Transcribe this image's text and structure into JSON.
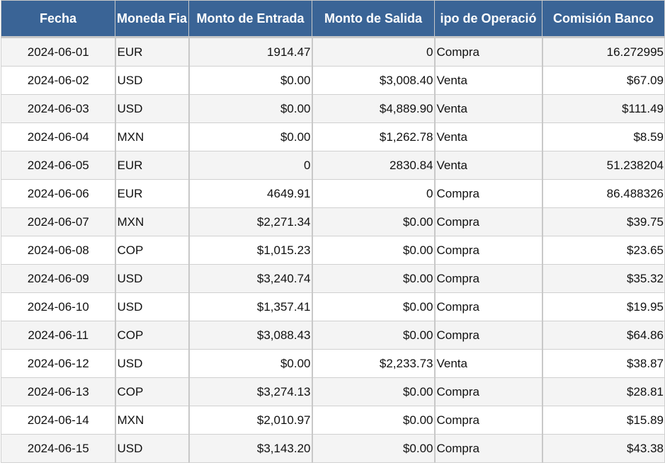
{
  "table": {
    "headers": [
      "Fecha",
      "Moneda Fia",
      "Monto de Entrada",
      "Monto de Salida",
      "ipo de Operació",
      "Comisión Banco"
    ],
    "rows": [
      [
        "2024-06-01",
        "EUR",
        "1914.47",
        "0",
        "Compra",
        "16.272995"
      ],
      [
        "2024-06-02",
        "USD",
        "$0.00",
        "$3,008.40",
        "Venta",
        "$67.09"
      ],
      [
        "2024-06-03",
        "USD",
        "$0.00",
        "$4,889.90",
        "Venta",
        "$111.49"
      ],
      [
        "2024-06-04",
        "MXN",
        "$0.00",
        "$1,262.78",
        "Venta",
        "$8.59"
      ],
      [
        "2024-06-05",
        "EUR",
        "0",
        "2830.84",
        "Venta",
        "51.238204"
      ],
      [
        "2024-06-06",
        "EUR",
        "4649.91",
        "0",
        "Compra",
        "86.488326"
      ],
      [
        "2024-06-07",
        "MXN",
        "$2,271.34",
        "$0.00",
        "Compra",
        "$39.75"
      ],
      [
        "2024-06-08",
        "COP",
        "$1,015.23",
        "$0.00",
        "Compra",
        "$23.65"
      ],
      [
        "2024-06-09",
        "USD",
        "$3,240.74",
        "$0.00",
        "Compra",
        "$35.32"
      ],
      [
        "2024-06-10",
        "USD",
        "$1,357.41",
        "$0.00",
        "Compra",
        "$19.95"
      ],
      [
        "2024-06-11",
        "COP",
        "$3,088.43",
        "$0.00",
        "Compra",
        "$64.86"
      ],
      [
        "2024-06-12",
        "USD",
        "$0.00",
        "$2,233.73",
        "Venta",
        "$38.87"
      ],
      [
        "2024-06-13",
        "COP",
        "$3,274.13",
        "$0.00",
        "Compra",
        "$28.81"
      ],
      [
        "2024-06-14",
        "MXN",
        "$2,010.97",
        "$0.00",
        "Compra",
        "$15.89"
      ],
      [
        "2024-06-15",
        "USD",
        "$3,143.20",
        "$0.00",
        "Compra",
        "$43.38"
      ]
    ]
  }
}
